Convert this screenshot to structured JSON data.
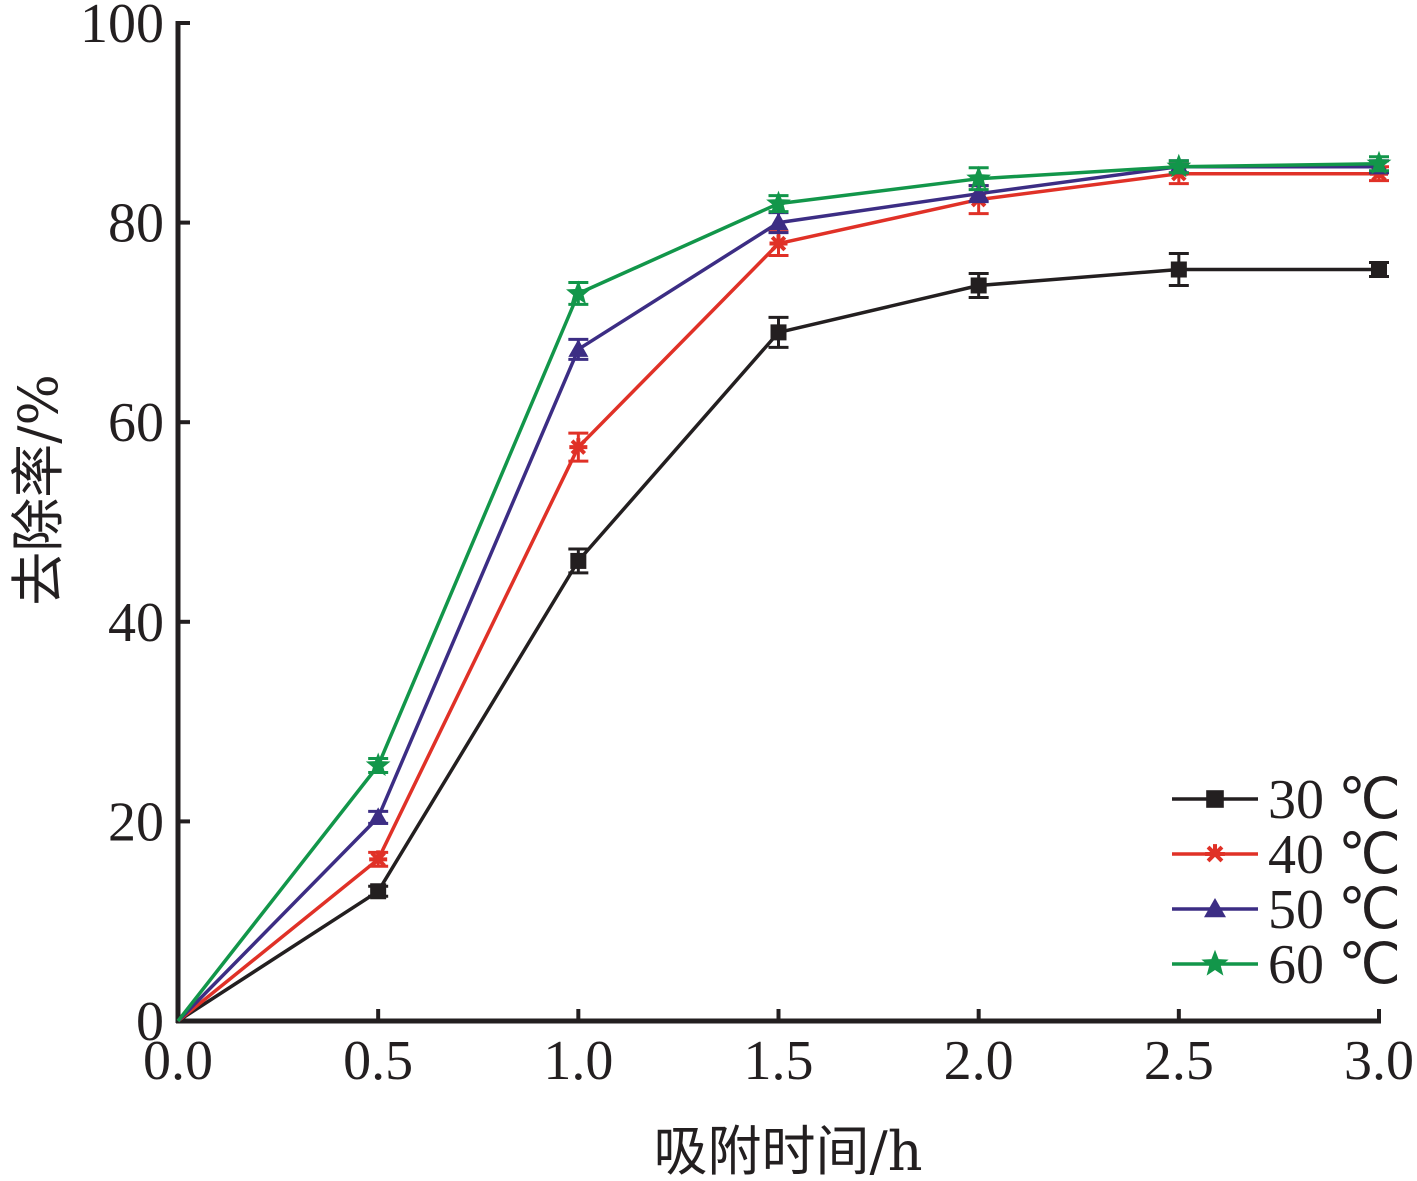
{
  "chart_data": {
    "type": "line",
    "xlabel": "吸附时间/h",
    "ylabel": "去除率/%",
    "x": [
      0.0,
      0.5,
      1.0,
      1.5,
      2.0,
      2.5,
      3.0
    ],
    "xlim": [
      0.0,
      3.0
    ],
    "ylim": [
      0,
      100
    ],
    "x_ticks": [
      "0.0",
      "0.5",
      "1.0",
      "1.5",
      "2.0",
      "2.5",
      "3.0"
    ],
    "y_ticks": [
      "0",
      "20",
      "40",
      "60",
      "80",
      "100"
    ],
    "grid": false,
    "legend_position": "bottom-right",
    "series": [
      {
        "name": "30 ℃",
        "color": "#231f20",
        "marker": "square",
        "values": [
          0,
          13.0,
          46.1,
          69.0,
          73.7,
          75.3,
          75.3
        ],
        "errors": [
          0,
          0.5,
          1.2,
          1.5,
          1.2,
          1.6,
          0.7
        ]
      },
      {
        "name": "40 ℃",
        "color": "#e03127",
        "marker": "asterisk",
        "values": [
          0,
          16.2,
          57.5,
          77.9,
          82.3,
          84.9,
          84.9
        ],
        "errors": [
          0,
          0.7,
          1.4,
          1.2,
          1.4,
          1.0,
          0.7
        ]
      },
      {
        "name": "50 ℃",
        "color": "#3c2d84",
        "marker": "triangle",
        "values": [
          0,
          20.4,
          67.3,
          80.0,
          82.9,
          85.6,
          85.6
        ],
        "errors": [
          0,
          0.6,
          1.0,
          1.0,
          0.8,
          0.6,
          0.6
        ]
      },
      {
        "name": "60 ℃",
        "color": "#12964a",
        "marker": "star",
        "values": [
          0,
          25.6,
          72.9,
          81.9,
          84.4,
          85.6,
          85.9
        ],
        "errors": [
          0,
          0.7,
          1.1,
          0.8,
          1.1,
          0.6,
          0.7
        ]
      }
    ]
  }
}
